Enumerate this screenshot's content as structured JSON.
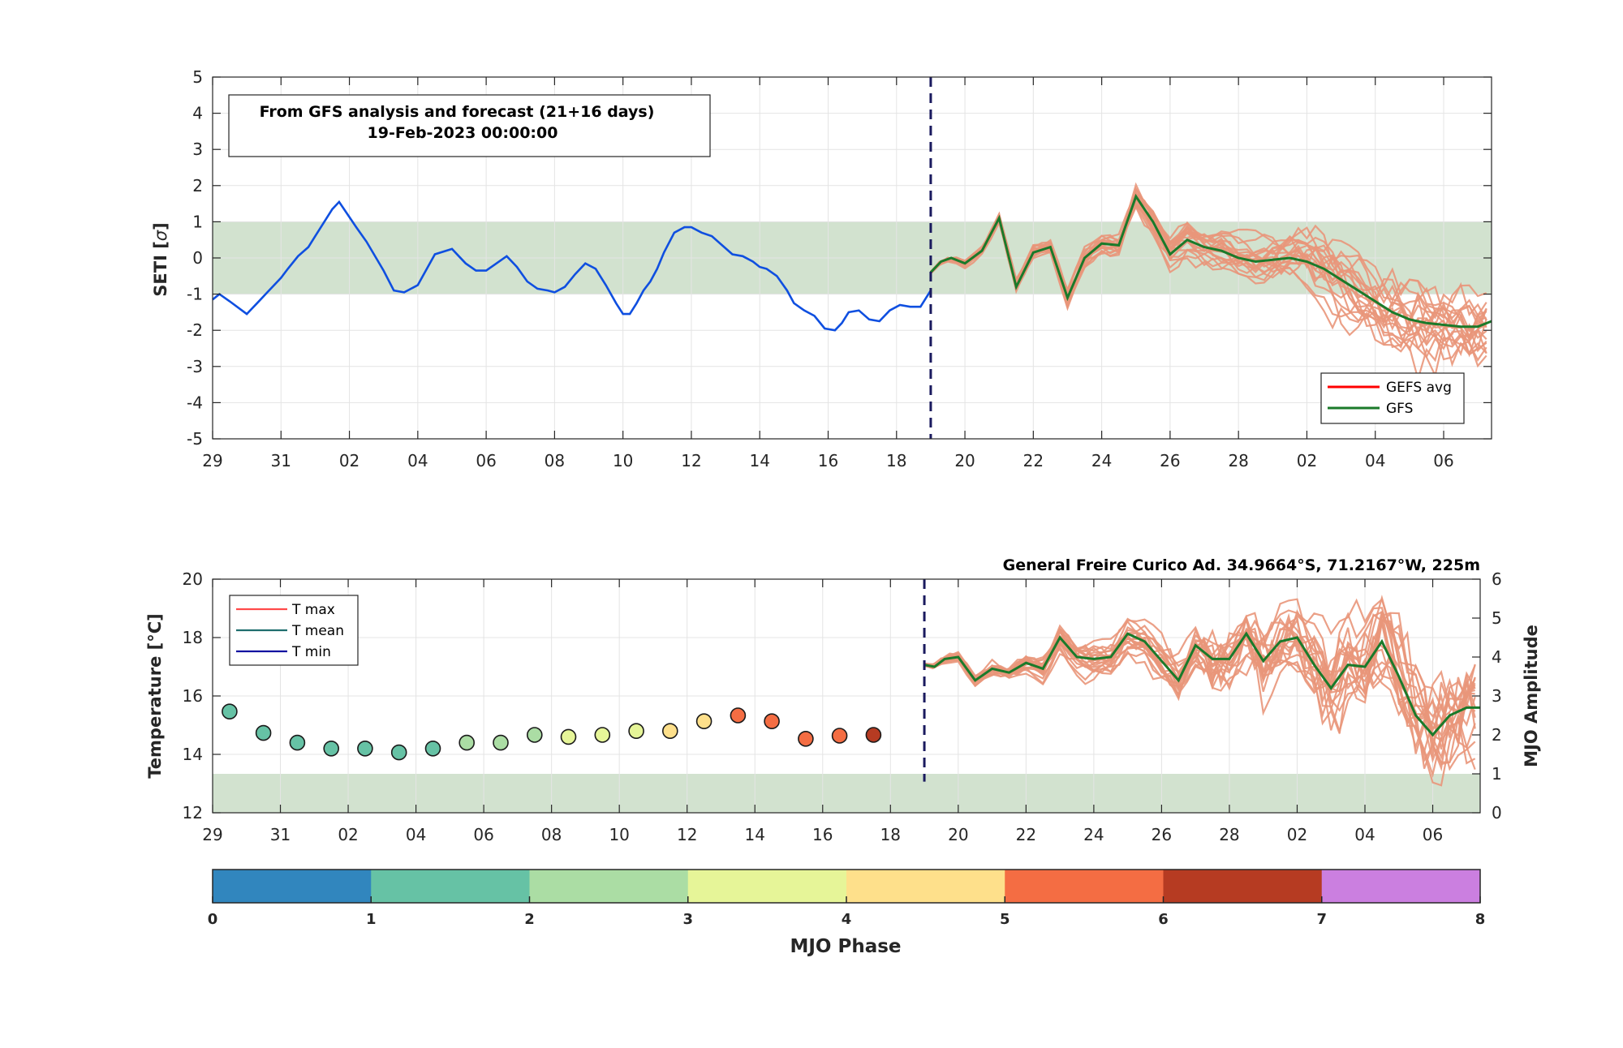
{
  "colors": {
    "analysis_line": "#0f4fe0",
    "ensemble_line": "#e9967a",
    "gfs_line": "#1a7a2a",
    "gefs_avg_line": "#ff0000",
    "band_fill": "#d2e2cf",
    "forecast_divider": "#1a1a5e",
    "grid": "#e4e4e4"
  },
  "top_chart": {
    "info_line1": "From GFS analysis and forecast (21+16 days)",
    "info_line2": "19-Feb-2023 00:00:00",
    "ylabel": "SETI [",
    "ylabel_sigma": "σ",
    "ylabel_end": "]",
    "legend": [
      "GEFS avg",
      "GFS"
    ]
  },
  "bottom_chart": {
    "station_title": "General Freire Curico Ad. 34.9664°S, 71.2167°W, 225m",
    "ylabel_left": "Temperature [°C]",
    "ylabel_right": "MJO Amplitude",
    "legend": [
      "T max",
      "T mean",
      "T min"
    ]
  },
  "colorbar": {
    "label": "MJO Phase",
    "ticks": [
      "0",
      "1",
      "2",
      "3",
      "4",
      "5",
      "6",
      "7",
      "8"
    ],
    "colors": [
      "#3186be",
      "#66c2a5",
      "#abdda4",
      "#e6f598",
      "#fee08b",
      "#f46d43",
      "#b63b22",
      "#cb7fe0"
    ]
  },
  "chart_data": [
    {
      "type": "line",
      "title": "SETI",
      "ylabel": "SETI [σ]",
      "ylim": [
        -5,
        5
      ],
      "y_ticks": [
        -5,
        -4,
        -3,
        -2,
        -1,
        0,
        1,
        2,
        3,
        4,
        5
      ],
      "x_ticks": [
        "29",
        "31",
        "02",
        "04",
        "06",
        "08",
        "10",
        "12",
        "14",
        "16",
        "18",
        "20",
        "22",
        "24",
        "26",
        "28",
        "02",
        "04",
        "06"
      ],
      "x_tick_days": [
        0,
        2,
        4,
        6,
        8,
        10,
        12,
        14,
        16,
        18,
        20,
        22,
        24,
        26,
        28,
        30,
        32,
        34,
        36
      ],
      "x_unit": "days from 29 Jan 2023",
      "xlim": [
        0,
        37.4
      ],
      "shaded_band": [
        -1,
        1
      ],
      "forecast_start_day": 21,
      "grid": true,
      "legend_position": "bottom-right",
      "series": [
        {
          "name": "analysis",
          "x": [
            0,
            0.2,
            0.5,
            1.0,
            1.3,
            1.6,
            2.0,
            2.2,
            2.5,
            2.8,
            3.0,
            3.5,
            3.7,
            4.2,
            4.5,
            5.0,
            5.3,
            5.6,
            6.0,
            6.5,
            7.0,
            7.2,
            7.4,
            7.7,
            8.0,
            8.3,
            8.6,
            8.9,
            9.2,
            9.5,
            9.8,
            10.0,
            10.3,
            10.6,
            10.9,
            11.2,
            11.5,
            11.8,
            12.0,
            12.2,
            12.4,
            12.6,
            12.8,
            13.0,
            13.2,
            13.5,
            13.8,
            14.0,
            14.3,
            14.6,
            14.9,
            15.2,
            15.5,
            15.8,
            16.0,
            16.2,
            16.5,
            16.8,
            17.0,
            17.3,
            17.6,
            17.9,
            18.2,
            18.4,
            18.6,
            18.9,
            19.2,
            19.5,
            19.8,
            20.1,
            20.4,
            20.7,
            21.0
          ],
          "y": [
            -1.15,
            -1.0,
            -1.2,
            -1.55,
            -1.25,
            -0.95,
            -0.55,
            -0.3,
            0.05,
            0.3,
            0.6,
            1.35,
            1.55,
            0.85,
            0.45,
            -0.35,
            -0.9,
            -0.95,
            -0.75,
            0.1,
            0.25,
            0.05,
            -0.15,
            -0.35,
            -0.35,
            -0.15,
            0.05,
            -0.25,
            -0.65,
            -0.85,
            -0.9,
            -0.95,
            -0.8,
            -0.45,
            -0.15,
            -0.3,
            -0.75,
            -1.25,
            -1.55,
            -1.55,
            -1.25,
            -0.9,
            -0.65,
            -0.3,
            0.15,
            0.7,
            0.85,
            0.85,
            0.7,
            0.6,
            0.35,
            0.1,
            0.05,
            -0.1,
            -0.25,
            -0.3,
            -0.5,
            -0.9,
            -1.25,
            -1.45,
            -1.6,
            -1.95,
            -2.0,
            -1.8,
            -1.5,
            -1.45,
            -1.7,
            -1.75,
            -1.45,
            -1.3,
            -1.35,
            -1.35,
            -0.9
          ]
        },
        {
          "name": "GFS",
          "x": [
            21,
            21.3,
            21.6,
            22,
            22.5,
            23,
            23.5,
            24,
            24.5,
            25,
            25.5,
            26,
            26.5,
            27,
            27.5,
            28,
            28.5,
            29,
            29.5,
            30,
            30.5,
            31,
            31.5,
            32,
            32.5,
            33,
            33.5,
            34,
            34.5,
            35,
            35.5,
            36,
            36.5,
            37,
            37.4
          ],
          "y": [
            -0.4,
            -0.1,
            0.0,
            -0.15,
            0.2,
            1.1,
            -0.8,
            0.15,
            0.3,
            -1.1,
            0.0,
            0.4,
            0.35,
            1.7,
            1.0,
            0.1,
            0.5,
            0.3,
            0.2,
            0.0,
            -0.1,
            -0.05,
            0.0,
            -0.1,
            -0.3,
            -0.6,
            -0.9,
            -1.2,
            -1.5,
            -1.7,
            -1.8,
            -1.85,
            -1.9,
            -1.9,
            -1.75
          ]
        }
      ]
    },
    {
      "type": "scatter",
      "title": "General Freire Curico Ad. 34.9664°S, 71.2167°W, 225m",
      "ylabel_left": "Temperature [°C]",
      "ylabel_right": "MJO Amplitude",
      "ylim_left": [
        12,
        20
      ],
      "ylim_right": [
        0,
        6
      ],
      "y_ticks_left": [
        12,
        14,
        16,
        18,
        20
      ],
      "y_ticks_right": [
        0,
        1,
        2,
        3,
        4,
        5,
        6
      ],
      "x_ticks": [
        "29",
        "31",
        "02",
        "04",
        "06",
        "08",
        "10",
        "12",
        "14",
        "16",
        "18",
        "20",
        "22",
        "24",
        "26",
        "28",
        "02",
        "04",
        "06"
      ],
      "forecast_start_day": 21,
      "shaded_band_right": [
        0,
        1
      ],
      "legend_position": "top-left",
      "mjo_points": {
        "day": [
          0.5,
          1.5,
          2.5,
          3.5,
          4.5,
          5.5,
          6.5,
          7.5,
          8.5,
          9.5,
          10.5,
          11.5,
          12.5,
          13.5,
          14.5,
          15.5,
          16.5,
          17.5,
          18.5,
          19.5
        ],
        "amplitude": [
          2.6,
          2.05,
          1.8,
          1.65,
          1.65,
          1.55,
          1.65,
          1.8,
          1.8,
          2.0,
          1.95,
          2.0,
          2.1,
          2.1,
          2.35,
          2.5,
          2.35,
          1.9,
          1.98,
          2.0
        ],
        "phase": [
          1.5,
          1.6,
          1.5,
          1.5,
          1.6,
          1.7,
          1.6,
          2.2,
          2.5,
          2.7,
          3.2,
          3.4,
          3.5,
          4.2,
          4.3,
          5.3,
          5.4,
          5.5,
          5.5,
          6.4
        ]
      },
      "series": [
        {
          "name": "GFS",
          "x": [
            21,
            21.3,
            21.6,
            22,
            22.5,
            23,
            23.5,
            24,
            24.5,
            25,
            25.5,
            26,
            26.5,
            27,
            27.5,
            28,
            28.5,
            29,
            29.5,
            30,
            30.5,
            31,
            31.5,
            32,
            32.5,
            33,
            33.5,
            34,
            34.5,
            35,
            35.5,
            36,
            36.5,
            37,
            37.4
          ],
          "y": [
            3.8,
            3.75,
            3.95,
            4.0,
            3.4,
            3.7,
            3.6,
            3.85,
            3.7,
            4.5,
            4.0,
            3.95,
            4.0,
            4.6,
            4.4,
            3.9,
            3.4,
            4.3,
            3.95,
            3.95,
            4.6,
            3.9,
            4.4,
            4.5,
            3.8,
            3.2,
            3.8,
            3.75,
            4.4,
            3.5,
            2.5,
            2.0,
            2.5,
            2.7,
            2.7
          ]
        }
      ]
    }
  ]
}
